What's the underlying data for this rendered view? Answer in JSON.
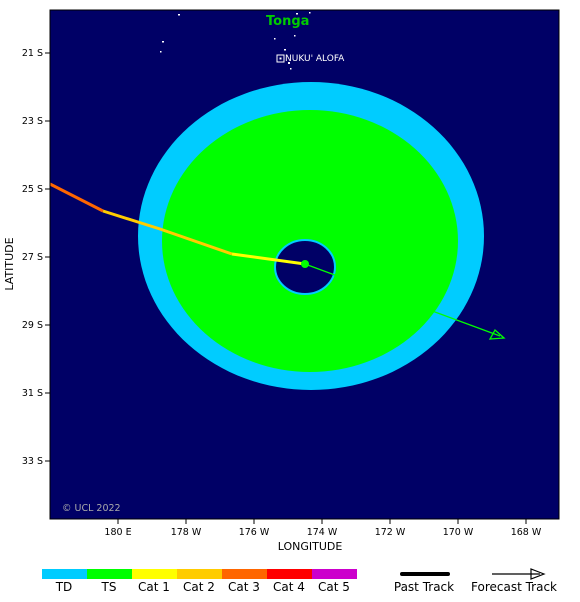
{
  "map": {
    "country_label": "Tonga",
    "city_label": "NUKU' ALOFA",
    "copyright": "© UCL 2022",
    "xlabel": "LONGITUDE",
    "ylabel": "LATITUDE",
    "x_ticks": [
      "180 E",
      "178 W",
      "176 W",
      "174 W",
      "172 W",
      "170 W",
      "168 W"
    ],
    "y_ticks": [
      "21 S",
      "23 S",
      "25 S",
      "27 S",
      "29 S",
      "31 S",
      "33 S"
    ],
    "colors": {
      "ocean": "#000066",
      "outer_wind_field": "#00ccff",
      "inner_wind_field": "#00ff00",
      "forecast_track": "#00ff00",
      "storm_center": "#00ff00"
    }
  },
  "legend": {
    "categories": [
      {
        "label": "TD",
        "color": "#00ccff"
      },
      {
        "label": "TS",
        "color": "#00ff00"
      },
      {
        "label": "Cat 1",
        "color": "#ffff00"
      },
      {
        "label": "Cat 2",
        "color": "#ffcc00"
      },
      {
        "label": "Cat 3",
        "color": "#ff6600"
      },
      {
        "label": "Cat 4",
        "color": "#ff0000"
      },
      {
        "label": "Cat 5",
        "color": "#cc00cc"
      }
    ],
    "past_track_label": "Past Track",
    "forecast_track_label": "Forecast Track"
  }
}
